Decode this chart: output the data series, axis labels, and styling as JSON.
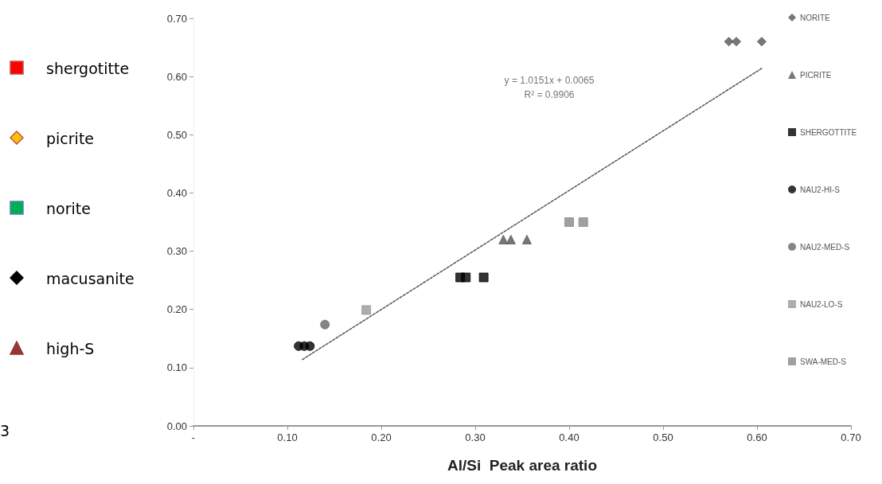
{
  "chart_data": {
    "type": "scatter",
    "xlabel": "Al/Si  Peak area ratio",
    "annotations": [
      "y = 1.0151x + 0.0065\nR² = 0.9906",
      "shergotitte",
      "picrite",
      "norite",
      "macusanite",
      "high-S",
      "3"
    ],
    "xlim": [
      0,
      0.7
    ],
    "xticks": [
      {
        "value": 0,
        "label": "-"
      },
      {
        "value": 0.1,
        "label": "0.10"
      },
      {
        "value": 0.2,
        "label": "0.20"
      },
      {
        "value": 0.3,
        "label": "0.30"
      },
      {
        "value": 0.4,
        "label": "0.40"
      },
      {
        "value": 0.5,
        "label": "0.50"
      },
      {
        "value": 0.6,
        "label": "0.60"
      },
      {
        "value": 0.7,
        "label": "0.70"
      }
    ],
    "ylim": [
      0,
      0.7
    ],
    "yticks": [
      {
        "value": 0,
        "label": "0.00"
      },
      {
        "value": 0.1,
        "label": "0.10"
      },
      {
        "value": 0.2,
        "label": "0.20"
      },
      {
        "value": 0.3,
        "label": "0.30"
      },
      {
        "value": 0.4,
        "label": "0.40"
      },
      {
        "value": 0.5,
        "label": "0.50"
      },
      {
        "value": 0.6,
        "label": "0.60"
      },
      {
        "value": 0.7,
        "label": "0.70"
      }
    ],
    "grid": false,
    "legend": "right",
    "series": [
      {
        "name": "NORITE",
        "color": "#555555",
        "marker": "diamond",
        "x": [
          0.57,
          0.578,
          0.605
        ],
        "values": [
          0.66,
          0.66,
          0.66
        ]
      },
      {
        "name": "PICRITE",
        "color": "#555555",
        "marker": "triangle",
        "x": [
          0.33,
          0.338,
          0.355
        ],
        "values": [
          0.32,
          0.32,
          0.32
        ]
      },
      {
        "name": "SHERGOTTITE",
        "color": "#000000",
        "marker": "square",
        "x": [
          0.284,
          0.29,
          0.309
        ],
        "values": [
          0.255,
          0.255,
          0.255
        ]
      },
      {
        "name": "NAU2-HI-S",
        "color": "#000000",
        "marker": "circle",
        "x": [
          0.112,
          0.118,
          0.124
        ],
        "values": [
          0.137,
          0.137,
          0.137
        ]
      },
      {
        "name": "NAU2-MED-S",
        "color": "#666666",
        "marker": "circle",
        "x": [
          0.14
        ],
        "values": [
          0.174
        ]
      },
      {
        "name": "NAU2-LO-S",
        "color": "#999999",
        "marker": "square",
        "x": [
          0.184
        ],
        "values": [
          0.199
        ]
      },
      {
        "name": "SWA-MED-S",
        "color": "#888888",
        "marker": "square",
        "x": [
          0.4,
          0.415
        ],
        "values": [
          0.35,
          0.35
        ]
      },
      {
        "type": "line",
        "color": "#555555",
        "marker": "none",
        "line_style": "dotted",
        "x": [
          0.116,
          0.605
        ],
        "values": [
          0.114,
          0.614
        ]
      }
    ]
  }
}
